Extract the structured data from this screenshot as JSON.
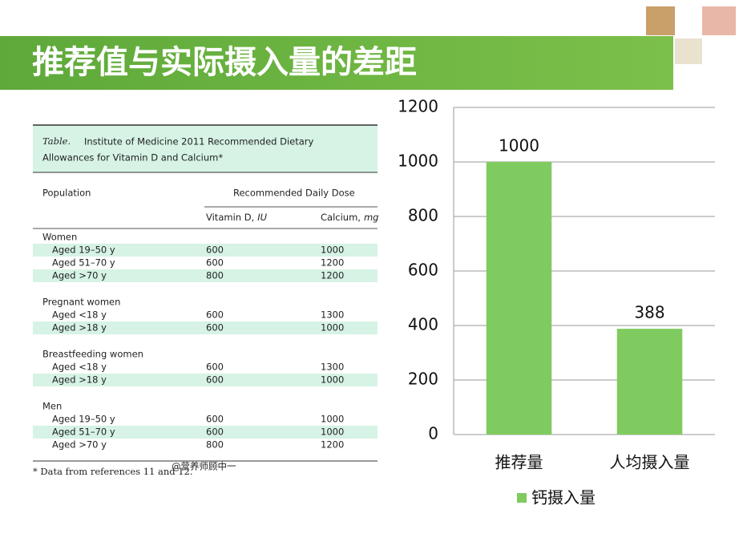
{
  "header": {
    "title": "推荐值与实际摄入量的差距"
  },
  "table": {
    "caption_label": "Table.",
    "caption": [
      "Institute of Medicine 2011 Recommended Dietary",
      "Allowances for Vitamin D and Calcium*"
    ],
    "header_population": "Population",
    "header_dose": "Recommended Daily Dose",
    "columns": [
      {
        "name": "Vitamin D,",
        "unit": "IU"
      },
      {
        "name": "Calcium,",
        "unit": "mg"
      }
    ],
    "groups": [
      {
        "name": "Women",
        "rows": [
          [
            "Aged 19–50 y",
            600,
            1000
          ],
          [
            "Aged 51–70 y",
            600,
            1200
          ],
          [
            "Aged >70 y",
            800,
            1200
          ]
        ]
      },
      {
        "name": "Pregnant women",
        "rows": [
          [
            "Aged <18 y",
            600,
            1300
          ],
          [
            "Aged >18 y",
            600,
            1000
          ]
        ]
      },
      {
        "name": "Breastfeeding women",
        "rows": [
          [
            "Aged <18 y",
            600,
            1300
          ],
          [
            "Aged >18 y",
            600,
            1000
          ]
        ]
      },
      {
        "name": "Men",
        "rows": [
          [
            "Aged 19–50 y",
            600,
            1000
          ],
          [
            "Aged 51–70 y",
            600,
            1000
          ],
          [
            "Aged >70 y",
            800,
            1200
          ]
        ]
      }
    ],
    "footnote": "* Data from references 11 and 12.",
    "watermark": "@营养师顾中一"
  },
  "chart_data": {
    "type": "bar",
    "categories": [
      "推荐量",
      "人均摄入量"
    ],
    "series": [
      {
        "name": "钙摄入量",
        "color": "#7fcb5f",
        "values": [
          1000,
          388
        ]
      }
    ],
    "ylim": [
      0,
      1200
    ],
    "yticks": [
      0,
      200,
      400,
      600,
      800,
      1000,
      1200
    ],
    "grid": true,
    "legend": "bottom"
  }
}
